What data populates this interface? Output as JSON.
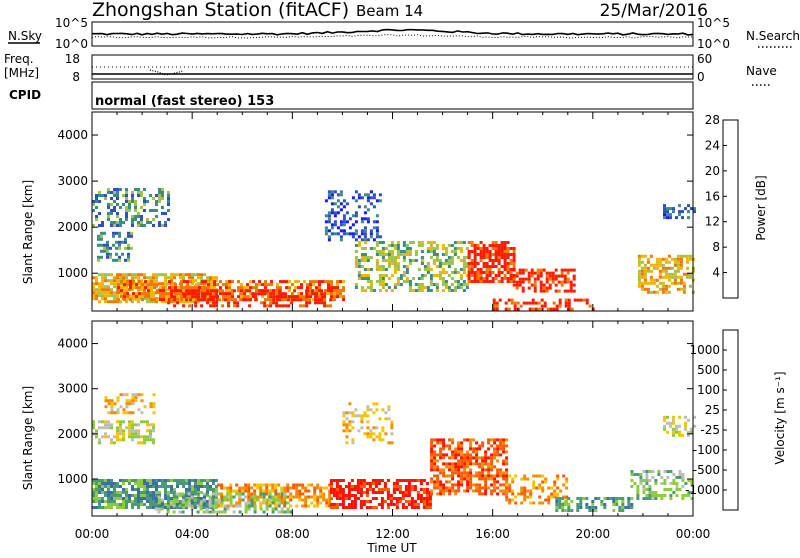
{
  "header": {
    "title": "Zhongshan Station (fitACF)",
    "beam": "Beam 14",
    "date": "25/Mar/2016"
  },
  "info_panels": {
    "nsky_label": "N.Sky",
    "nsky_ticks": [
      "10^5",
      "10^0"
    ],
    "nsearch_label": "N.Search",
    "nsearch_ticks": [
      "10^5",
      "10^0"
    ],
    "freq_label_1": "Freq.",
    "freq_label_2": "[MHz]",
    "freq_ticks": [
      "18",
      "8"
    ],
    "nave_label": "Nave",
    "nave_ticks": [
      "60",
      "0"
    ],
    "cpid_label": "CPID",
    "cpid_value": "normal (fast stereo) 153"
  },
  "chart_data": [
    {
      "type": "heatmap",
      "title": "",
      "ylabel": "Slant Range [km]",
      "xlabel": "",
      "y_ticks": [
        1000,
        2000,
        3000,
        4000
      ],
      "ylim": [
        180,
        4500
      ],
      "colorbar": {
        "label": "Power [dB]",
        "ticks": [
          "4",
          "8",
          "12",
          "16",
          "20",
          "24",
          "28"
        ],
        "colors": [
          "#1a1aff",
          "#2b50c8",
          "#3a8c84",
          "#9ec24a",
          "#f2b400",
          "#f07800",
          "#ff1a00"
        ]
      },
      "regions": [
        {
          "t0": 0.0,
          "t1": 3.0,
          "r0": 2050,
          "r1": 2850,
          "level": 2,
          "density": 0.45
        },
        {
          "t0": 0.2,
          "t1": 1.6,
          "r0": 1300,
          "r1": 1900,
          "level": 2,
          "density": 0.4
        },
        {
          "t0": 0.0,
          "t1": 5.0,
          "r0": 400,
          "r1": 1000,
          "level": 4,
          "density": 0.75
        },
        {
          "t0": 1.0,
          "t1": 10.0,
          "r0": 400,
          "r1": 850,
          "level": 5,
          "density": 0.7
        },
        {
          "t0": 3.0,
          "t1": 9.5,
          "r0": 300,
          "r1": 650,
          "level": 6,
          "density": 0.5
        },
        {
          "t0": 9.3,
          "t1": 11.5,
          "r0": 1700,
          "r1": 2800,
          "level": 1,
          "density": 0.35
        },
        {
          "t0": 10.5,
          "t1": 15.0,
          "r0": 600,
          "r1": 1700,
          "level": 3,
          "density": 0.45
        },
        {
          "t0": 15.0,
          "t1": 16.8,
          "r0": 800,
          "r1": 1700,
          "level": 6,
          "density": 0.75
        },
        {
          "t0": 16.8,
          "t1": 19.3,
          "r0": 600,
          "r1": 1100,
          "level": 6,
          "density": 0.6
        },
        {
          "t0": 16.0,
          "t1": 20.0,
          "r0": 200,
          "r1": 450,
          "level": 6,
          "density": 0.5
        },
        {
          "t0": 21.8,
          "t1": 24.0,
          "r0": 600,
          "r1": 1400,
          "level": 4,
          "density": 0.5
        },
        {
          "t0": 22.8,
          "t1": 24.0,
          "r0": 2200,
          "r1": 2500,
          "level": 1,
          "density": 0.4
        }
      ]
    },
    {
      "type": "heatmap",
      "title": "",
      "ylabel": "Slant Range [km]",
      "xlabel": "Time UT",
      "x_ticks": [
        "00:00",
        "04:00",
        "08:00",
        "12:00",
        "16:00",
        "20:00",
        "00:00"
      ],
      "y_ticks": [
        1000,
        2000,
        3000,
        4000
      ],
      "ylim": [
        180,
        4500
      ],
      "colorbar": {
        "label": "Velocity [m s⁻¹]",
        "ticks": [
          "1000",
          "500",
          "100",
          "25",
          "-25",
          "-100",
          "-500",
          "-1000"
        ],
        "colors": [
          "#2040d0",
          "#3a6fa8",
          "#4a9a78",
          "#8ccc3a",
          "#bdbdbd",
          "#f5c400",
          "#f28c00",
          "#ff5a00",
          "#ff1000"
        ]
      },
      "regions": [
        {
          "t0": 0.0,
          "t1": 2.5,
          "r0": 1800,
          "r1": 2300,
          "level": 4,
          "density": 0.6
        },
        {
          "t0": 0.5,
          "t1": 2.5,
          "r0": 2500,
          "r1": 2900,
          "level": 5,
          "density": 0.35
        },
        {
          "t0": 0.0,
          "t1": 5.0,
          "r0": 350,
          "r1": 1000,
          "level": 2,
          "density": 0.75
        },
        {
          "t0": 5.0,
          "t1": 9.5,
          "r0": 400,
          "r1": 900,
          "level": 6,
          "density": 0.6
        },
        {
          "t0": 2.5,
          "t1": 8.0,
          "r0": 300,
          "r1": 700,
          "level": 3,
          "density": 0.5
        },
        {
          "t0": 9.5,
          "t1": 13.5,
          "r0": 400,
          "r1": 1000,
          "level": 8,
          "density": 0.65
        },
        {
          "t0": 10.0,
          "t1": 12.0,
          "r0": 1800,
          "r1": 2700,
          "level": 5,
          "density": 0.3
        },
        {
          "t0": 13.5,
          "t1": 16.5,
          "r0": 700,
          "r1": 1900,
          "level": 7,
          "density": 0.65
        },
        {
          "t0": 16.5,
          "t1": 19.0,
          "r0": 500,
          "r1": 1100,
          "level": 6,
          "density": 0.45
        },
        {
          "t0": 18.5,
          "t1": 21.5,
          "r0": 300,
          "r1": 600,
          "level": 2,
          "density": 0.4
        },
        {
          "t0": 21.5,
          "t1": 24.0,
          "r0": 600,
          "r1": 1200,
          "level": 3,
          "density": 0.5
        },
        {
          "t0": 22.8,
          "t1": 24.0,
          "r0": 2000,
          "r1": 2400,
          "level": 4,
          "density": 0.4
        }
      ]
    }
  ]
}
